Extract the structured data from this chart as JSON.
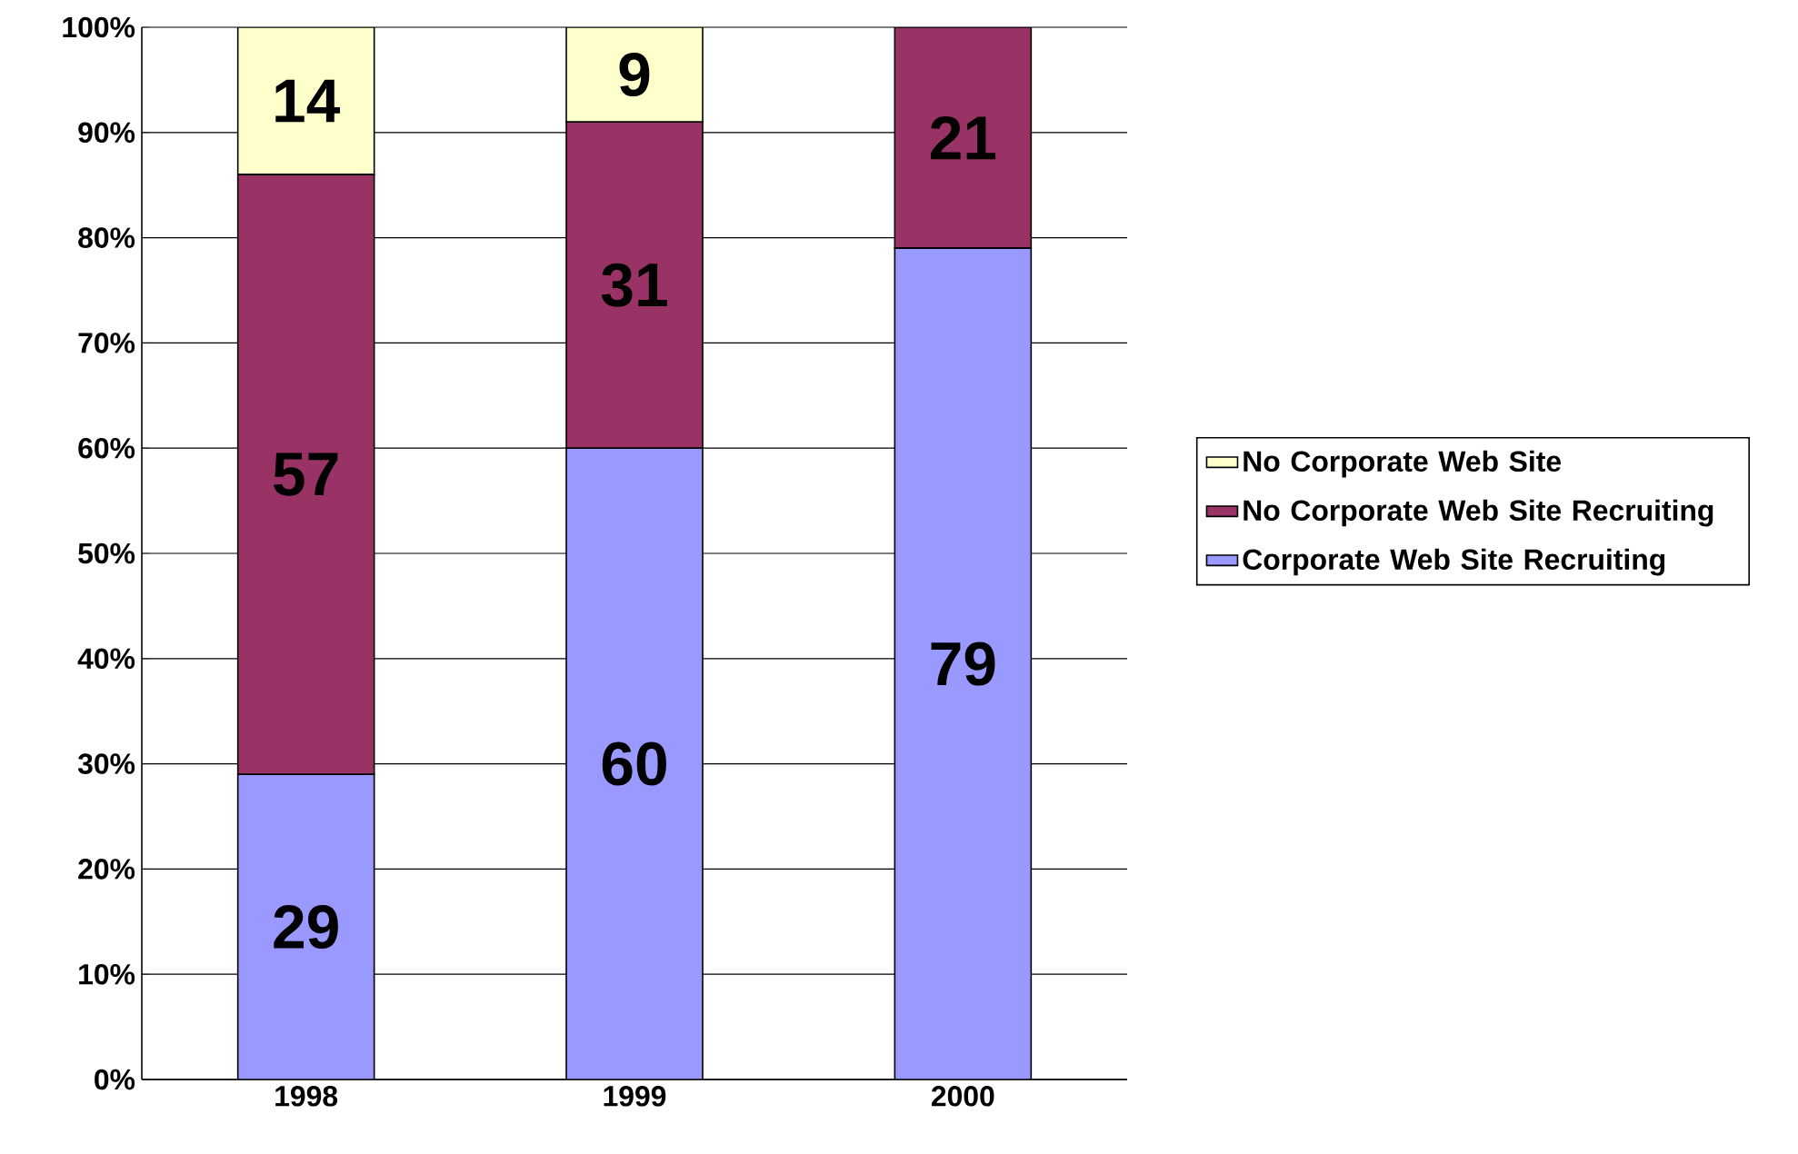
{
  "chart_data": {
    "type": "bar",
    "stacked": true,
    "categories": [
      "1998",
      "1999",
      "2000"
    ],
    "series": [
      {
        "name": "Corporate Web Site Recruiting",
        "color": "#9999ff",
        "values": [
          29,
          60,
          79
        ]
      },
      {
        "name": "No Corporate Web Site Recruiting",
        "color": "#993366",
        "values": [
          57,
          31,
          21
        ]
      },
      {
        "name": "No Corporate Web Site",
        "color": "#ffffcc",
        "values": [
          14,
          9,
          null
        ]
      }
    ],
    "ylim": [
      0,
      100
    ],
    "yticks": [
      {
        "value": 0,
        "label": "0%"
      },
      {
        "value": 10,
        "label": "10%"
      },
      {
        "value": 20,
        "label": "20%"
      },
      {
        "value": 30,
        "label": "30%"
      },
      {
        "value": 40,
        "label": "40%"
      },
      {
        "value": 50,
        "label": "50%"
      },
      {
        "value": 60,
        "label": "60%"
      },
      {
        "value": 70,
        "label": "70%"
      },
      {
        "value": 80,
        "label": "80%"
      },
      {
        "value": 90,
        "label": "90%"
      },
      {
        "value": 100,
        "label": "100%"
      }
    ],
    "grid": "y",
    "legend": "right",
    "data_labels": true
  }
}
